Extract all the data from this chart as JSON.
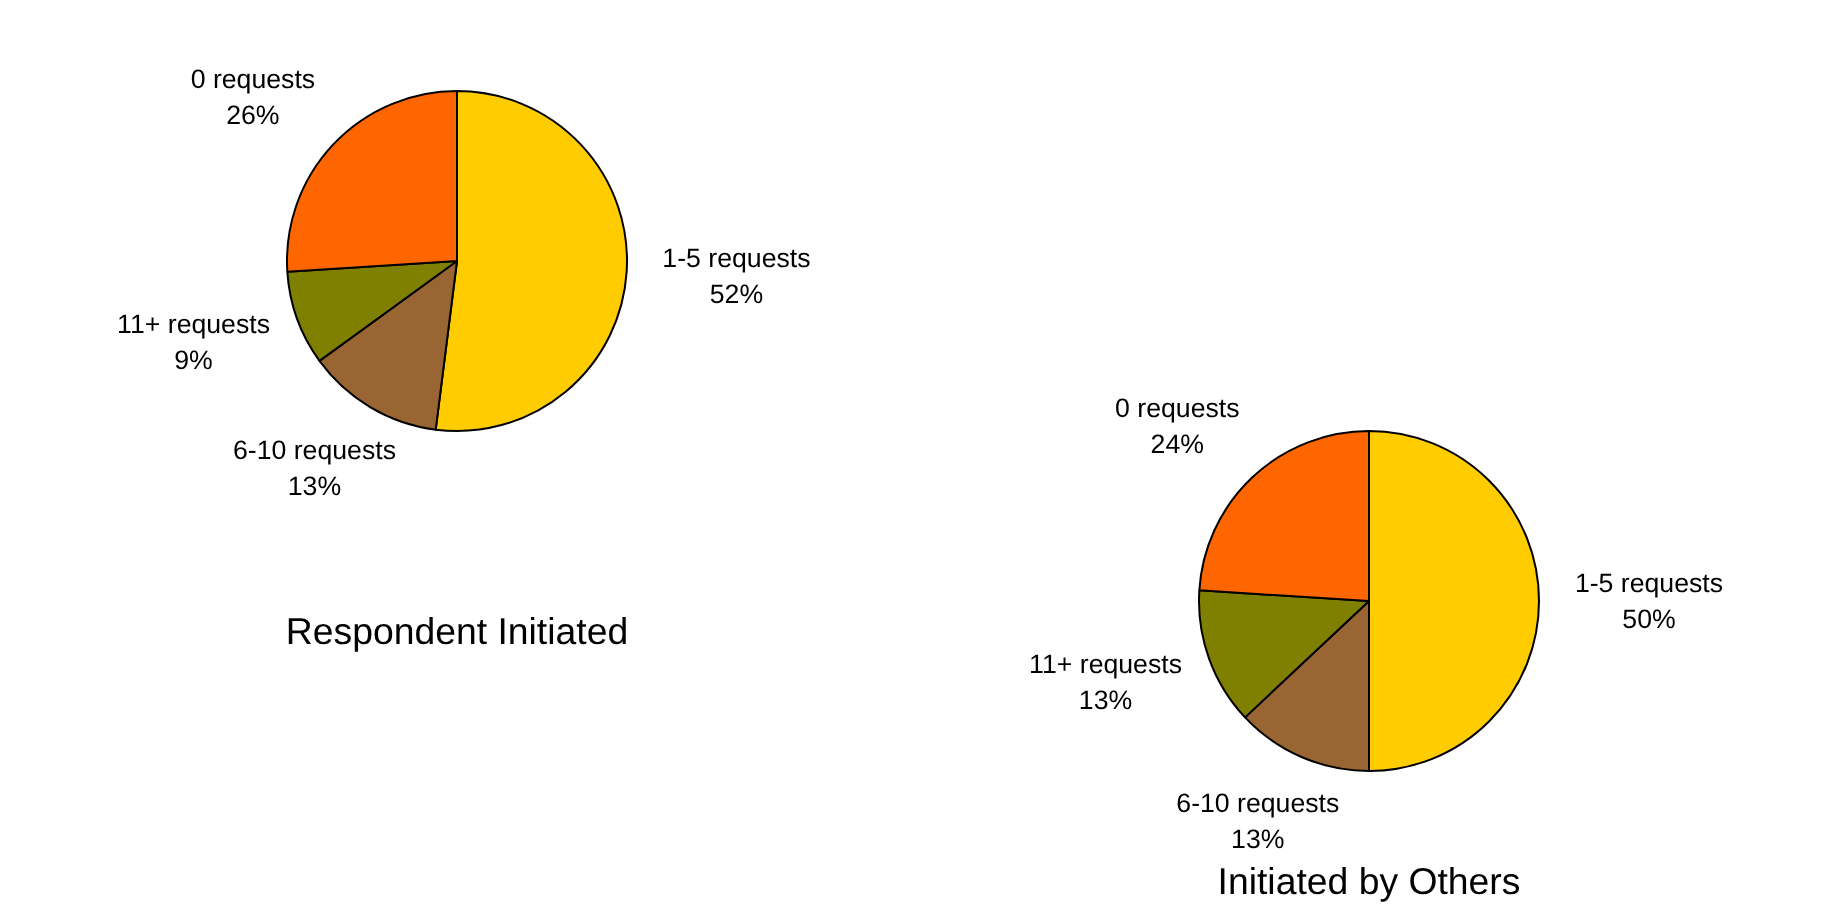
{
  "chart_data": [
    {
      "type": "pie",
      "title": "Respondent Initiated",
      "categories": [
        "1-5 requests",
        "6-10 requests",
        "11+ requests",
        "0 requests"
      ],
      "values": [
        52,
        13,
        9,
        26
      ],
      "value_labels": [
        "52%",
        "13%",
        "9%",
        "26%"
      ],
      "colors": [
        "#ffcc00",
        "#996633",
        "#808000",
        "#ff6600"
      ]
    },
    {
      "type": "pie",
      "title": "Initiated by Others",
      "categories": [
        "1-5 requests",
        "6-10 requests",
        "11+ requests",
        "0 requests"
      ],
      "values": [
        50,
        13,
        13,
        24
      ],
      "value_labels": [
        "50%",
        "13%",
        "13%",
        "24%"
      ],
      "colors": [
        "#ffcc00",
        "#996633",
        "#808000",
        "#ff6600"
      ]
    }
  ]
}
